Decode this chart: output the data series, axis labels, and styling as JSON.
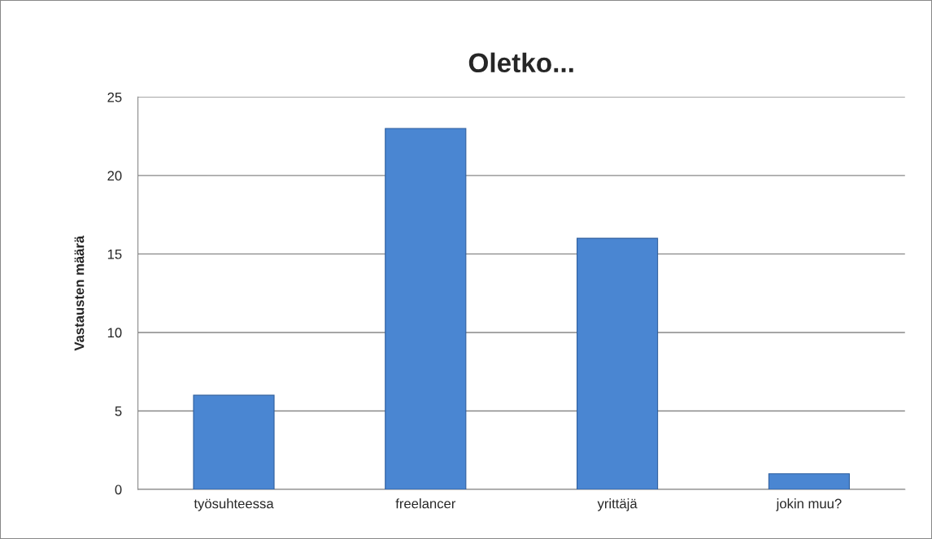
{
  "chart_data": {
    "type": "bar",
    "title": "Oletko...",
    "ylabel": "Vastausten määrä",
    "categories": [
      "työsuhteessa",
      "freelancer",
      "yrittäjä",
      "jokin muu?"
    ],
    "values": [
      6,
      23,
      16,
      1
    ],
    "color": "#4a86d2",
    "ylim": [
      0,
      25
    ],
    "yticks": [
      0,
      5,
      10,
      15,
      20,
      25
    ],
    "grid": "y",
    "legend": false
  }
}
